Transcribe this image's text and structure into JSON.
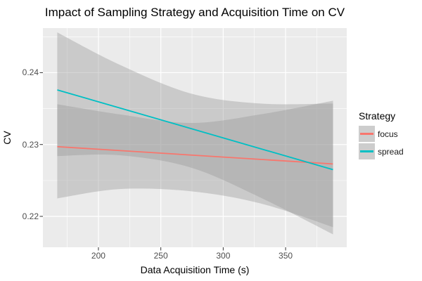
{
  "title": "Impact of Sampling Strategy and Acquisition Time on CV",
  "axes": {
    "x": {
      "label": "Data Acquisition Time (s)",
      "ticks": [
        {
          "value": 200,
          "label": "200"
        },
        {
          "value": 250,
          "label": "250"
        },
        {
          "value": 300,
          "label": "300"
        },
        {
          "value": 350,
          "label": "350"
        }
      ],
      "minor_ticks": [
        175,
        225,
        275,
        325,
        375
      ]
    },
    "y": {
      "label": "CV",
      "ticks": [
        {
          "value": 0.22,
          "label": "0.22"
        },
        {
          "value": 0.23,
          "label": "0.23"
        },
        {
          "value": 0.24,
          "label": "0.24"
        }
      ],
      "minor_ticks": [
        0.225,
        0.235,
        0.245
      ]
    }
  },
  "legend": {
    "title": "Strategy",
    "entries": [
      {
        "label": "focus",
        "color": "#F8766D"
      },
      {
        "label": "spread",
        "color": "#00BFC4"
      }
    ],
    "key_fill": "#CDCDCD"
  },
  "colors": {
    "panel_bg": "#EBEBEB",
    "grid_major": "#FFFFFF",
    "grid_minor": "#FFFFFF",
    "band_fill": "#999999",
    "band_opacity": 0.4,
    "tick_mark": "#333333",
    "tick_text": "#4D4D4D"
  },
  "chart_data": {
    "type": "line",
    "title": "Impact of Sampling Strategy and Acquisition Time on CV",
    "xlabel": "Data Acquisition Time (s)",
    "ylabel": "CV",
    "xlim": [
      155.5,
      399.0
    ],
    "ylim": [
      0.2157,
      0.2462
    ],
    "grid": true,
    "legend_position": "right",
    "series": [
      {
        "name": "focus",
        "color": "#F8766D",
        "x": [
          167,
          388
        ],
        "y": [
          0.2297,
          0.2273
        ],
        "ci_band": {
          "x": [
            167,
            217,
            274,
            330,
            388
          ],
          "upper": [
            0.2356,
            0.2342,
            0.233,
            0.2342,
            0.2361
          ],
          "lower": [
            0.2225,
            0.2238,
            0.2235,
            0.2218,
            0.2185
          ]
        }
      },
      {
        "name": "spread",
        "color": "#00BFC4",
        "x": [
          167,
          388
        ],
        "y": [
          0.2376,
          0.2265
        ],
        "ci_band": {
          "x": [
            167,
            217,
            274,
            330,
            388
          ],
          "upper": [
            0.2456,
            0.2411,
            0.2371,
            0.2357,
            0.2357
          ],
          "lower": [
            0.2284,
            0.2285,
            0.2268,
            0.2226,
            0.2175
          ]
        }
      }
    ]
  }
}
